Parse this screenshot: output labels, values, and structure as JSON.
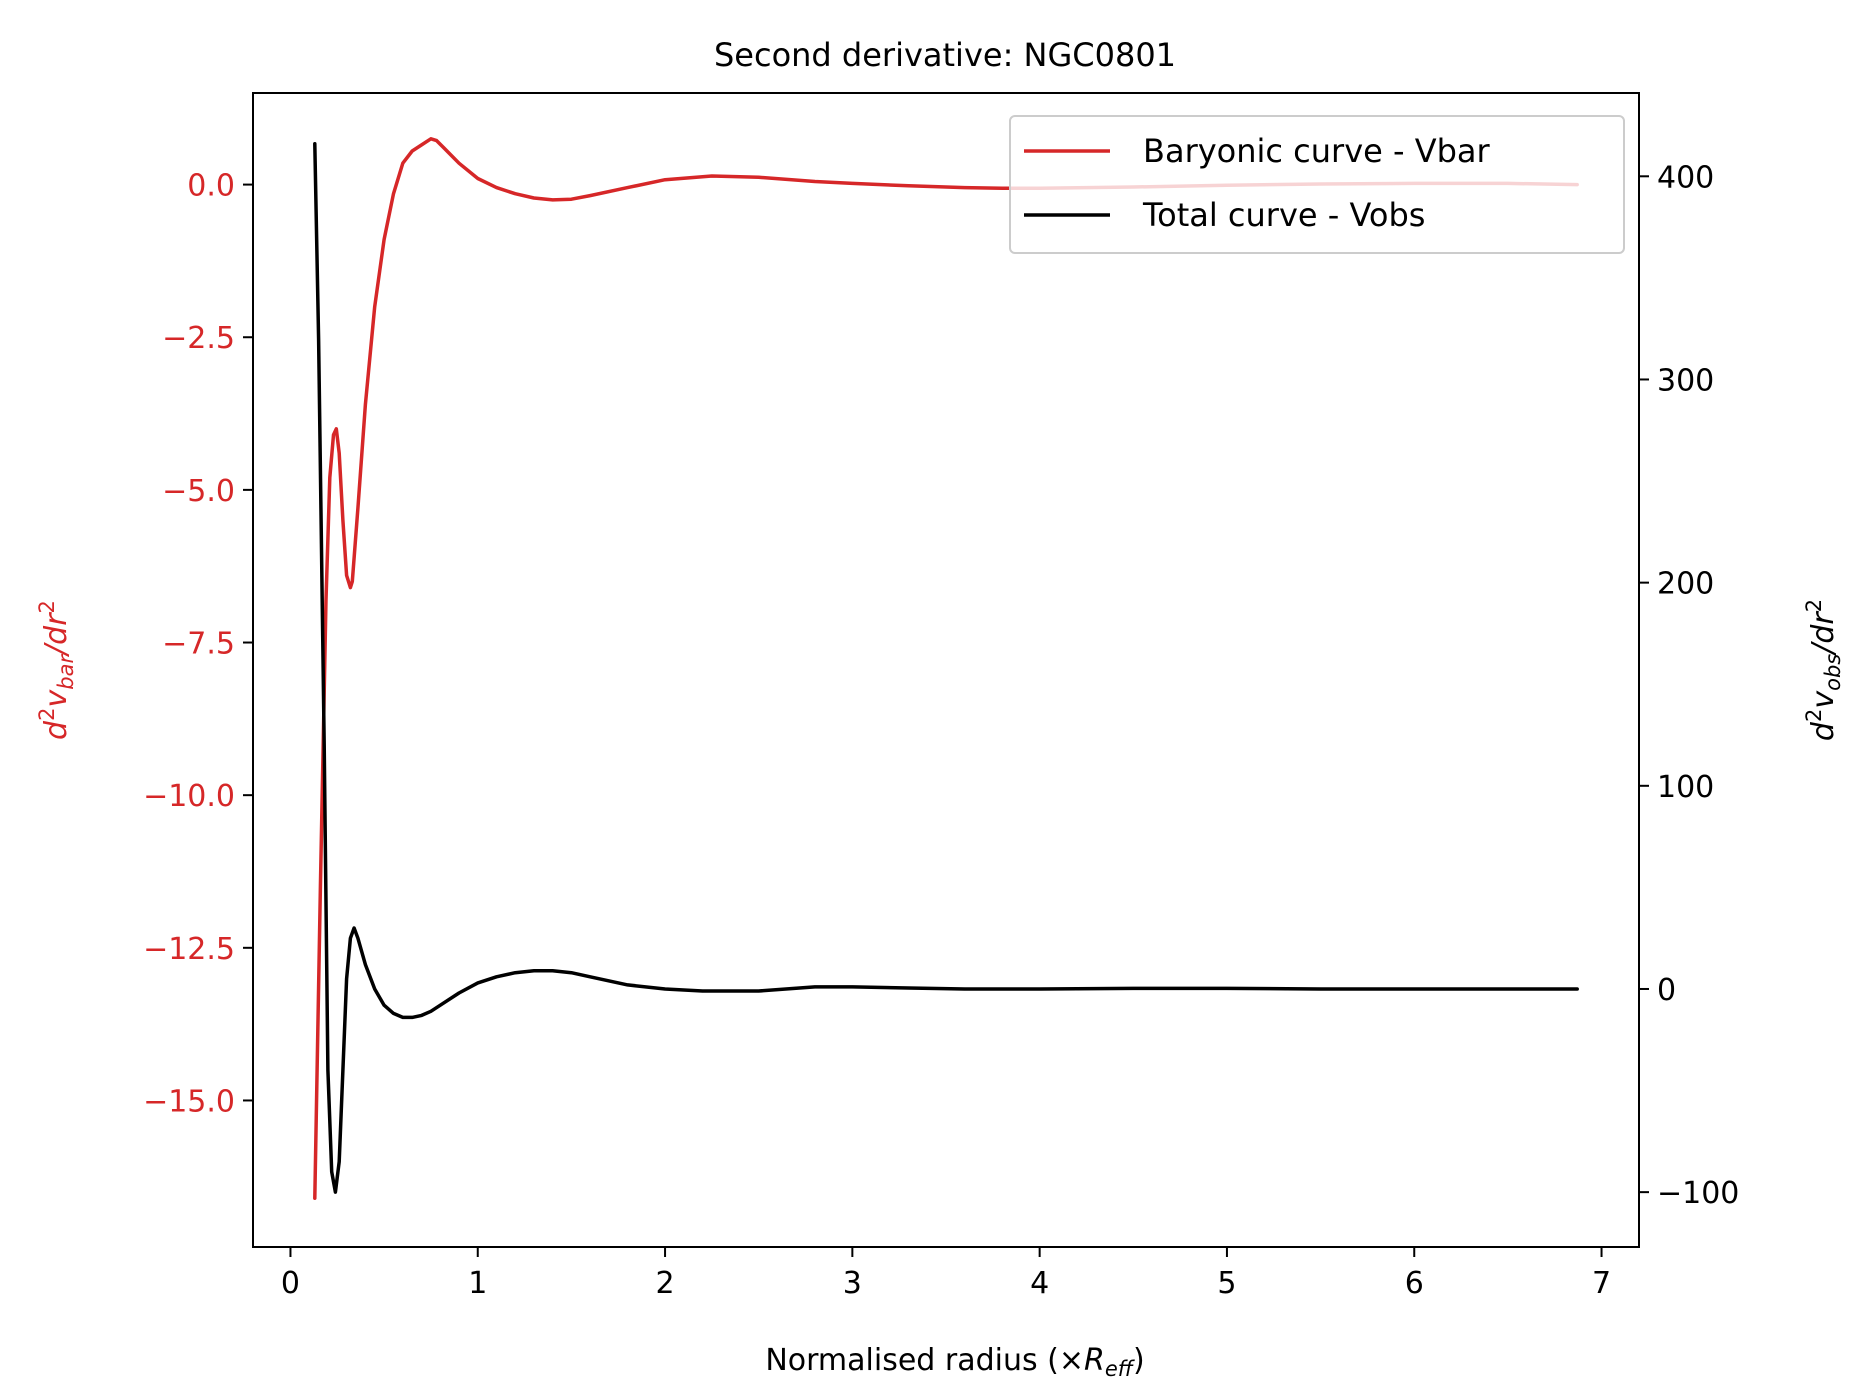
{
  "chart_data": {
    "type": "line",
    "title": "Second derivative: NGC0801",
    "xlabel": "Normalised radius (×R_eff)",
    "xlabel_parts": {
      "main": "Normalised radius (×",
      "var": "R",
      "sub": "eff",
      "close": ")"
    },
    "ylabel_left": "d²v_bar/dr²",
    "ylabel_left_parts": {
      "d": "d",
      "sup1": "2",
      "v": "v",
      "sub": "bar",
      "slash": "/dr",
      "sup2": "2"
    },
    "ylabel_right": "d²v_obs/dr²",
    "ylabel_right_parts": {
      "d": "d",
      "sup1": "2",
      "v": "v",
      "sub": "obs",
      "slash": "/dr",
      "sup2": "2"
    },
    "xlim": [
      -0.2,
      7.2
    ],
    "ylim_left": [
      -17.4,
      1.5
    ],
    "ylim_right": [
      -127,
      441
    ],
    "grid": false,
    "legend_position": "upper right",
    "left_axis_color": "#d62728",
    "right_axis_color": "#000000",
    "x_ticks": [
      {
        "value": 0,
        "label": "0"
      },
      {
        "value": 1,
        "label": "1"
      },
      {
        "value": 2,
        "label": "2"
      },
      {
        "value": 3,
        "label": "3"
      },
      {
        "value": 4,
        "label": "4"
      },
      {
        "value": 5,
        "label": "5"
      },
      {
        "value": 6,
        "label": "6"
      },
      {
        "value": 7,
        "label": "7"
      }
    ],
    "y_left_ticks": [
      {
        "value": 0.0,
        "label": "0.0"
      },
      {
        "value": -2.5,
        "label": "−2.5"
      },
      {
        "value": -5.0,
        "label": "−5.0"
      },
      {
        "value": -7.5,
        "label": "−7.5"
      },
      {
        "value": -10.0,
        "label": "−10.0"
      },
      {
        "value": -12.5,
        "label": "−12.5"
      },
      {
        "value": -15.0,
        "label": "−15.0"
      }
    ],
    "y_right_ticks": [
      {
        "value": 400,
        "label": "400"
      },
      {
        "value": 300,
        "label": "300"
      },
      {
        "value": 200,
        "label": "200"
      },
      {
        "value": 100,
        "label": "100"
      },
      {
        "value": 0,
        "label": "0"
      },
      {
        "value": -100,
        "label": "−100"
      }
    ],
    "series": [
      {
        "name": "Baryonic curve - Vbar",
        "axis": "left",
        "color": "#d62728",
        "x": [
          0.13,
          0.16,
          0.19,
          0.21,
          0.23,
          0.245,
          0.26,
          0.28,
          0.3,
          0.32,
          0.33,
          0.36,
          0.4,
          0.45,
          0.5,
          0.55,
          0.6,
          0.65,
          0.7,
          0.75,
          0.78,
          0.82,
          0.9,
          1.0,
          1.1,
          1.2,
          1.3,
          1.4,
          1.5,
          1.6,
          1.8,
          2.0,
          2.25,
          2.5,
          2.8,
          3.0,
          3.3,
          3.6,
          3.8,
          4.0,
          4.5,
          5.0,
          5.5,
          6.0,
          6.5,
          6.87
        ],
        "y": [
          -16.6,
          -11.5,
          -6.8,
          -4.8,
          -4.1,
          -4.0,
          -4.4,
          -5.5,
          -6.4,
          -6.6,
          -6.5,
          -5.3,
          -3.6,
          -2.0,
          -0.9,
          -0.15,
          0.35,
          0.55,
          0.65,
          0.75,
          0.72,
          0.6,
          0.35,
          0.1,
          -0.05,
          -0.15,
          -0.22,
          -0.25,
          -0.24,
          -0.18,
          -0.05,
          0.08,
          0.14,
          0.12,
          0.05,
          0.02,
          -0.02,
          -0.05,
          -0.06,
          -0.06,
          -0.04,
          -0.01,
          0.01,
          0.02,
          0.02,
          0.0
        ]
      },
      {
        "name": "Total curve - Vobs",
        "axis": "right",
        "color": "#000000",
        "x": [
          0.13,
          0.15,
          0.18,
          0.2,
          0.22,
          0.24,
          0.26,
          0.28,
          0.3,
          0.32,
          0.34,
          0.36,
          0.4,
          0.45,
          0.5,
          0.55,
          0.6,
          0.65,
          0.7,
          0.75,
          0.8,
          0.9,
          1.0,
          1.1,
          1.2,
          1.3,
          1.4,
          1.5,
          1.6,
          1.8,
          2.0,
          2.2,
          2.5,
          2.8,
          3.0,
          3.3,
          3.6,
          4.0,
          4.5,
          5.0,
          5.5,
          6.0,
          6.5,
          6.87
        ],
        "y": [
          416,
          320,
          120,
          -40,
          -90,
          -100,
          -85,
          -40,
          5,
          25,
          30,
          25,
          12,
          0,
          -8,
          -12,
          -14,
          -14,
          -13,
          -11,
          -8,
          -2,
          3,
          6,
          8,
          9,
          9,
          8,
          6,
          2,
          0,
          -1,
          -1,
          1,
          1,
          0.5,
          0,
          0,
          0.3,
          0.3,
          0,
          0,
          0,
          0
        ]
      }
    ]
  }
}
